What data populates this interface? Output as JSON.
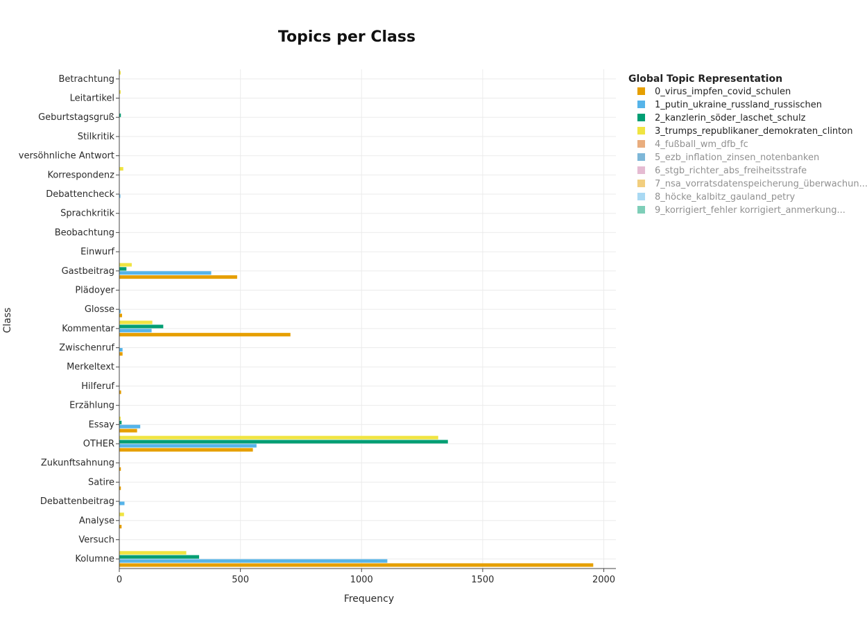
{
  "chart_data": {
    "type": "bar",
    "orientation": "horizontal",
    "title": "Topics per Class",
    "xlabel": "Frequency",
    "ylabel": "Class",
    "xlim": [
      0,
      2050
    ],
    "xticks": [
      0,
      500,
      1000,
      1500,
      2000
    ],
    "grid": true,
    "legend_position": "right",
    "legend_title": "Global Topic Representation",
    "categories": [
      "Betrachtung",
      "Leitartikel",
      "Geburtstagsgruß",
      "Stilkritik",
      "versöhnliche Antwort",
      "Korrespondenz",
      "Debattencheck",
      "Sprachkritik",
      "Beobachtung",
      "Einwurf",
      "Gastbeitrag",
      "Plädoyer",
      "Glosse",
      "Kommentar",
      "Zwischenruf",
      "Merkeltext",
      "Hilferuf",
      "Erzählung",
      "Essay",
      "OTHER",
      "Zukunftsahnung",
      "Satire",
      "Debattenbeitrag",
      "Analyse",
      "Versuch",
      "Kolumne"
    ],
    "series": [
      {
        "name": "0_virus_impfen_covid_schulen",
        "color": "#E69F00",
        "visible": true,
        "values": [
          0,
          0,
          0,
          0,
          0,
          0,
          0,
          0,
          0,
          0,
          485,
          0,
          10,
          705,
          12,
          0,
          6,
          0,
          72,
          550,
          5,
          5,
          0,
          8,
          0,
          1955
        ]
      },
      {
        "name": "1_putin_ukraine_russland_russischen",
        "color": "#56B4E9",
        "visible": true,
        "values": [
          0,
          0,
          0,
          0,
          0,
          0,
          2,
          0,
          0,
          0,
          378,
          0,
          4,
          132,
          12,
          0,
          0,
          0,
          85,
          565,
          0,
          0,
          20,
          0,
          0,
          1105
        ]
      },
      {
        "name": "2_kanzlerin_söder_laschet_schulz",
        "color": "#009E73",
        "visible": true,
        "values": [
          0,
          0,
          5,
          0,
          0,
          0,
          0,
          0,
          0,
          0,
          28,
          0,
          0,
          180,
          0,
          0,
          0,
          0,
          8,
          1355,
          0,
          0,
          0,
          0,
          0,
          328
        ]
      },
      {
        "name": "3_trumps_republikaner_demokraten_clinton",
        "color": "#F0E442",
        "visible": true,
        "values": [
          4,
          4,
          0,
          0,
          0,
          15,
          0,
          0,
          0,
          0,
          50,
          0,
          0,
          135,
          0,
          0,
          0,
          0,
          4,
          1315,
          0,
          0,
          0,
          18,
          0,
          275
        ]
      },
      {
        "name": "4_fußball_wm_dfb_fc",
        "color": "#D55E00",
        "visible": false
      },
      {
        "name": "5_ezb_inflation_zinsen_notenbanken",
        "color": "#0072B2",
        "visible": false
      },
      {
        "name": "6_stgb_richter_abs_freiheitsstrafe",
        "color": "#CC79A7",
        "visible": false
      },
      {
        "name": "7_nsa_vorratsdatenspeicherung_überwachun...",
        "color": "#E69F00",
        "visible": false
      },
      {
        "name": "8_höcke_kalbitz_gauland_petry",
        "color": "#56B4E9",
        "visible": false
      },
      {
        "name": "9_korrigiert_fehler korrigiert_anmerkung...",
        "color": "#009E73",
        "visible": false
      }
    ]
  }
}
